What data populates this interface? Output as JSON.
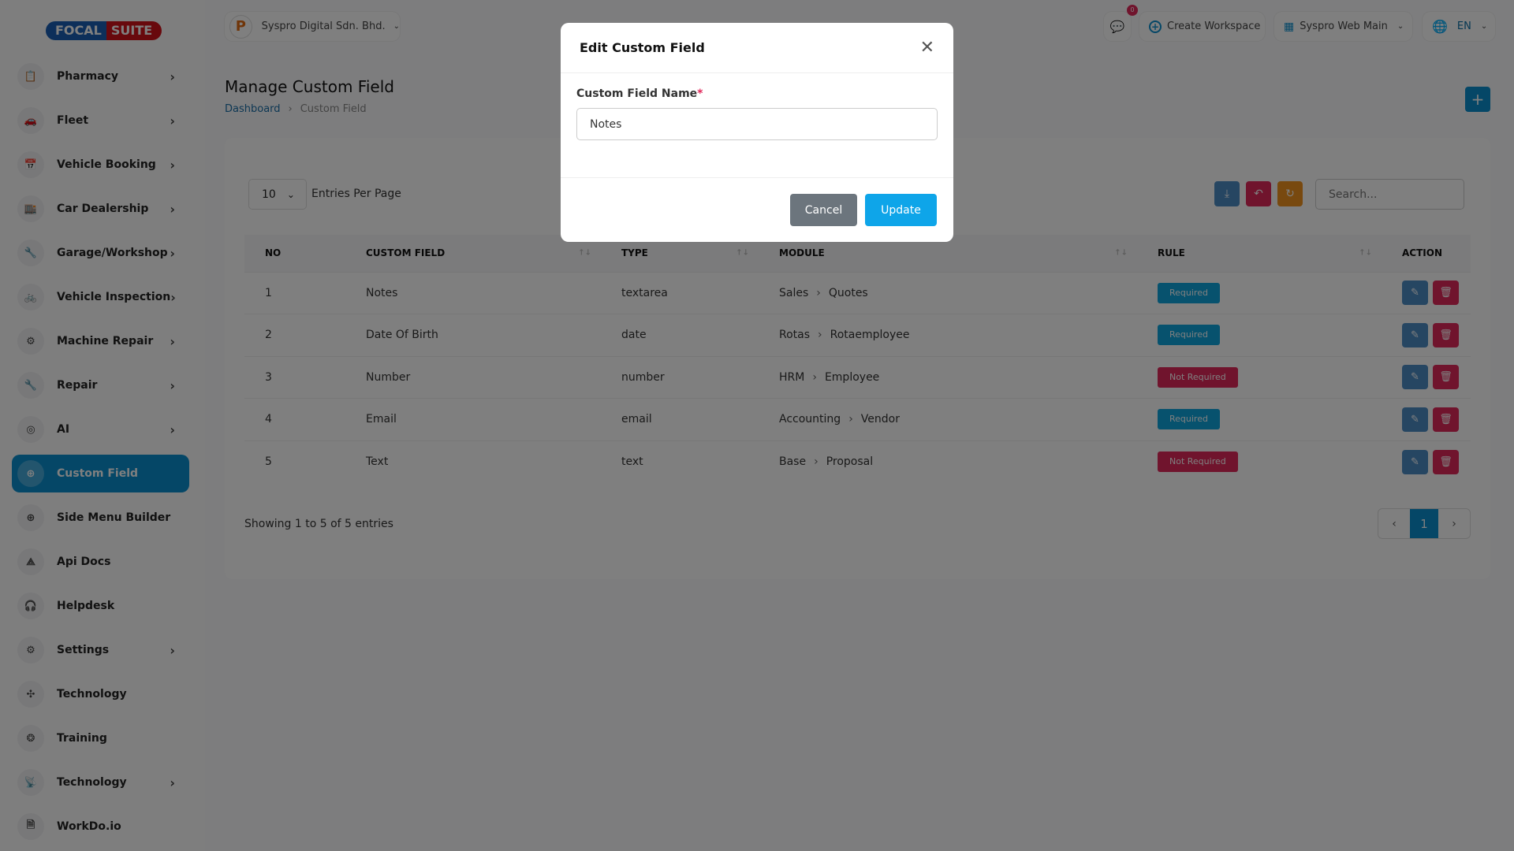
{
  "brand": {
    "logo_left": "FOCAL",
    "logo_right": "SUITE"
  },
  "sidebar": {
    "items": [
      {
        "label": "Pharmacy",
        "icon": "clipboard-icon",
        "chevron": true
      },
      {
        "label": "Fleet",
        "icon": "car-icon",
        "chevron": true
      },
      {
        "label": "Vehicle Booking",
        "icon": "calendar-icon",
        "chevron": true
      },
      {
        "label": "Car Dealership",
        "icon": "dealership-icon",
        "chevron": true
      },
      {
        "label": "Garage/Workshop",
        "icon": "tools-icon",
        "chevron": true
      },
      {
        "label": "Vehicle Inspection",
        "icon": "bike-icon",
        "chevron": true
      },
      {
        "label": "Machine Repair",
        "icon": "machine-icon",
        "chevron": true
      },
      {
        "label": "Repair",
        "icon": "wrench-icon",
        "chevron": true
      },
      {
        "label": "AI",
        "icon": "ai-icon",
        "chevron": true
      },
      {
        "label": "Custom Field",
        "icon": "plus-circle-icon",
        "chevron": false,
        "active": true
      },
      {
        "label": "Side Menu Builder",
        "icon": "plus-circle-icon",
        "chevron": false
      },
      {
        "label": "Api Docs",
        "icon": "api-icon",
        "chevron": false
      },
      {
        "label": "Helpdesk",
        "icon": "headset-icon",
        "chevron": false
      },
      {
        "label": "Settings",
        "icon": "gear-icon",
        "chevron": true
      },
      {
        "label": "Technology",
        "icon": "network-icon",
        "chevron": false
      },
      {
        "label": "Training",
        "icon": "training-icon",
        "chevron": false
      },
      {
        "label": "Technology",
        "icon": "broadcast-icon",
        "chevron": true
      },
      {
        "label": "WorkDo.io",
        "icon": "document-icon",
        "chevron": false
      }
    ]
  },
  "header": {
    "company": "Syspro Digital Sdn. Bhd.",
    "notification_count": "0",
    "create_workspace": "Create Workspace",
    "workspace": "Syspro Web Main",
    "language": "EN"
  },
  "page": {
    "title": "Manage Custom Field",
    "breadcrumb": [
      "Dashboard",
      "Custom Field"
    ]
  },
  "table_controls": {
    "entries_value": "10",
    "entries_label": "Entries Per Page",
    "search_placeholder": "Search..."
  },
  "table": {
    "columns": [
      "NO",
      "CUSTOM FIELD",
      "TYPE",
      "MODULE",
      "RULE",
      "ACTION"
    ],
    "rows": [
      {
        "no": "1",
        "field": "Notes",
        "type": "textarea",
        "module": "Sales",
        "submodule": "Quotes",
        "rule": "Required"
      },
      {
        "no": "2",
        "field": "Date Of Birth",
        "type": "date",
        "module": "Rotas",
        "submodule": "Rotaemployee",
        "rule": "Required"
      },
      {
        "no": "3",
        "field": "Number",
        "type": "number",
        "module": "HRM",
        "submodule": "Employee",
        "rule": "Not Required"
      },
      {
        "no": "4",
        "field": "Email",
        "type": "email",
        "module": "Accounting",
        "submodule": "Vendor",
        "rule": "Required"
      },
      {
        "no": "5",
        "field": "Text",
        "type": "text",
        "module": "Base",
        "submodule": "Proposal",
        "rule": "Not Required"
      }
    ]
  },
  "footer": {
    "showing": "Showing 1 to 5 of 5 entries",
    "current_page": "1"
  },
  "modal": {
    "title": "Edit Custom Field",
    "field_label": "Custom Field Name",
    "required_mark": "*",
    "field_value": "Notes",
    "cancel": "Cancel",
    "update": "Update"
  },
  "colors": {
    "primary": "#0a8fcf",
    "required": "#0ea5dc",
    "not_required": "#e0285a",
    "edit": "#4d8cc4",
    "delete": "#e0285a",
    "export": "#4d8cc4",
    "reset": "#e0285a",
    "refresh": "#f0931e"
  }
}
